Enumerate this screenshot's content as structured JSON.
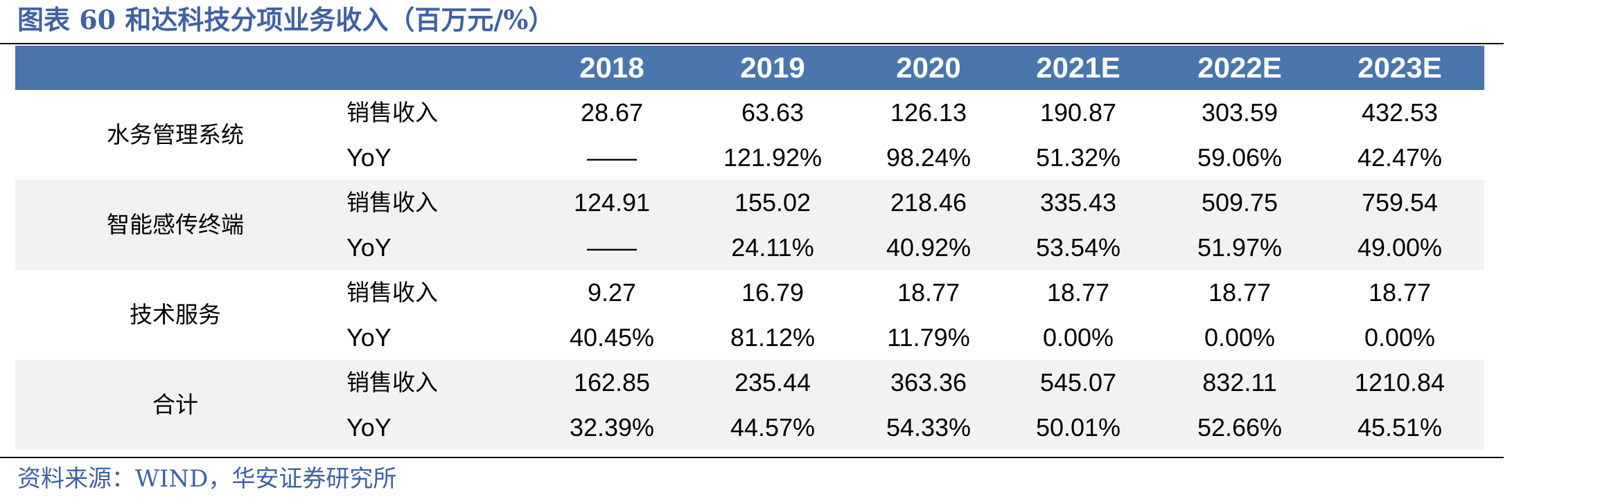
{
  "title": "图表 60 和达科技分项业务收入（百万元/%）",
  "years": [
    "2018",
    "2019",
    "2020",
    "2021E",
    "2022E",
    "2023E"
  ],
  "groups": [
    {
      "name": "水务管理系统",
      "rows": [
        {
          "metric": "销售收入",
          "values": [
            "28.67",
            "63.63",
            "126.13",
            "190.87",
            "303.59",
            "432.53"
          ]
        },
        {
          "metric": "YoY",
          "values": [
            "——",
            "121.92%",
            "98.24%",
            "51.32%",
            "59.06%",
            "42.47%"
          ]
        }
      ]
    },
    {
      "name": "智能感传终端",
      "rows": [
        {
          "metric": "销售收入",
          "values": [
            "124.91",
            "155.02",
            "218.46",
            "335.43",
            "509.75",
            "759.54"
          ]
        },
        {
          "metric": "YoY",
          "values": [
            "——",
            "24.11%",
            "40.92%",
            "53.54%",
            "51.97%",
            "49.00%"
          ]
        }
      ]
    },
    {
      "name": "技术服务",
      "rows": [
        {
          "metric": "销售收入",
          "values": [
            "9.27",
            "16.79",
            "18.77",
            "18.77",
            "18.77",
            "18.77"
          ]
        },
        {
          "metric": "YoY",
          "values": [
            "40.45%",
            "81.12%",
            "11.79%",
            "0.00%",
            "0.00%",
            "0.00%"
          ]
        }
      ]
    },
    {
      "name": "合计",
      "rows": [
        {
          "metric": "销售收入",
          "values": [
            "162.85",
            "235.44",
            "363.36",
            "545.07",
            "832.11",
            "1210.84"
          ]
        },
        {
          "metric": "YoY",
          "values": [
            "32.39%",
            "44.57%",
            "54.33%",
            "50.01%",
            "52.66%",
            "45.51%"
          ]
        }
      ]
    }
  ],
  "source": "资料来源：WIND，华安证券研究所",
  "colors": {
    "header_band": "#4a75ad",
    "title_text": "#3f62a2",
    "shaded_row": "#f2f2f2"
  }
}
